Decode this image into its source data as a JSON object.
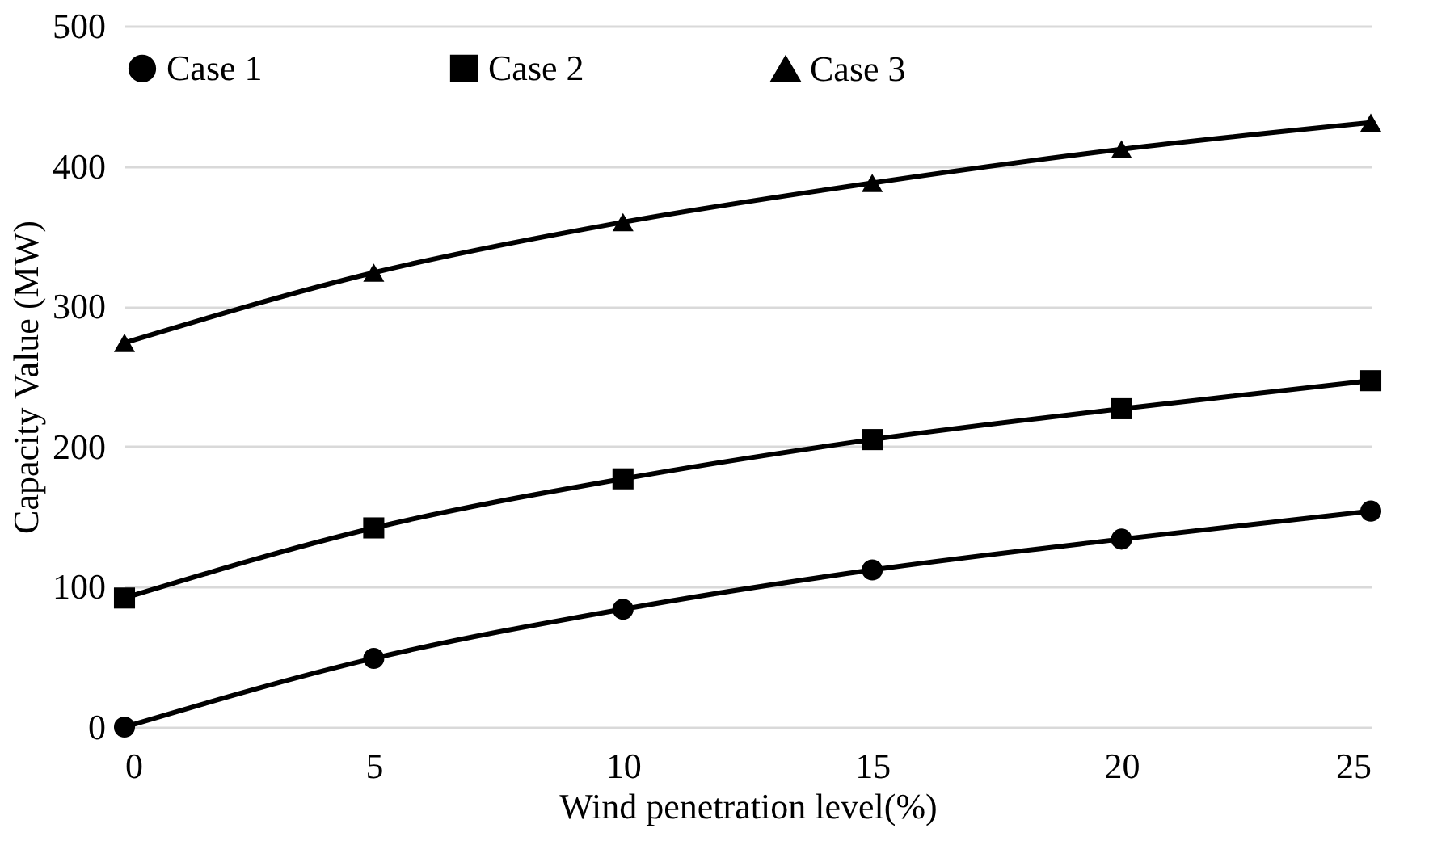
{
  "chart_data": {
    "type": "line",
    "xlabel": "Wind penetration level(%)",
    "ylabel": "Capacity Value (MW)",
    "x": [
      0,
      5,
      10,
      15,
      20,
      25
    ],
    "xlim": [
      0,
      25
    ],
    "xticks": [
      0,
      5,
      10,
      15,
      20,
      25
    ],
    "ylim": [
      0,
      500
    ],
    "yticks": [
      0,
      100,
      200,
      300,
      400,
      500
    ],
    "grid": "y",
    "legend": "top",
    "line_style": "solid",
    "series": [
      {
        "name": "Case 1",
        "color": "#000000",
        "marker": "circle",
        "values": [
          0,
          49,
          84,
          112,
          134,
          154
        ]
      },
      {
        "name": "Case 2",
        "color": "#000000",
        "marker": "square",
        "values": [
          92,
          142,
          177,
          205,
          227,
          247
        ]
      },
      {
        "name": "Case 3",
        "color": "#000000",
        "marker": "triangle",
        "values": [
          274,
          324,
          360,
          388,
          412,
          431
        ]
      }
    ]
  }
}
